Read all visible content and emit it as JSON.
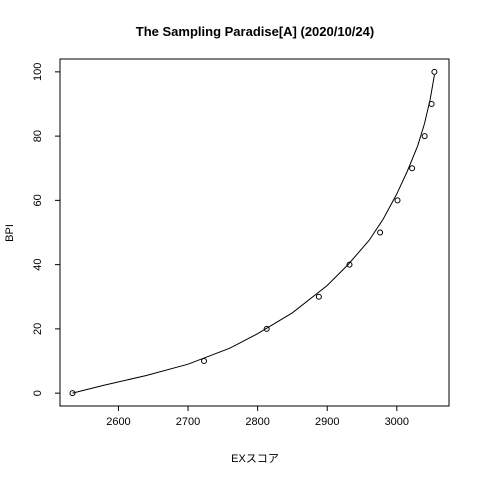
{
  "chart_data": {
    "type": "scatter",
    "title": "The Sampling Paradise[A] (2020/10/24)",
    "xlabel": "EXスコア",
    "ylabel": "BPI",
    "xlim": [
      2516,
      3075
    ],
    "ylim": [
      -4,
      104
    ],
    "x_ticks": [
      2600,
      2700,
      2800,
      2900,
      3000
    ],
    "y_ticks": [
      0,
      20,
      40,
      60,
      80,
      100
    ],
    "grid": false,
    "legend": "none",
    "series": [
      {
        "type": "scatter",
        "marker": "open-circle",
        "points": [
          {
            "x": 2534,
            "y": 0
          },
          {
            "x": 2723,
            "y": 10
          },
          {
            "x": 2813,
            "y": 20
          },
          {
            "x": 2888,
            "y": 30
          },
          {
            "x": 2932,
            "y": 40
          },
          {
            "x": 2976,
            "y": 50
          },
          {
            "x": 3001,
            "y": 60
          },
          {
            "x": 3022,
            "y": 70
          },
          {
            "x": 3040,
            "y": 80
          },
          {
            "x": 3050,
            "y": 90
          },
          {
            "x": 3054,
            "y": 100
          }
        ]
      },
      {
        "type": "line",
        "points": [
          {
            "x": 2534,
            "y": 0
          },
          {
            "x": 2580,
            "y": 2.5
          },
          {
            "x": 2640,
            "y": 5.5
          },
          {
            "x": 2700,
            "y": 9
          },
          {
            "x": 2760,
            "y": 14
          },
          {
            "x": 2800,
            "y": 18.5
          },
          {
            "x": 2850,
            "y": 25
          },
          {
            "x": 2900,
            "y": 33.5
          },
          {
            "x": 2930,
            "y": 40
          },
          {
            "x": 2960,
            "y": 47.5
          },
          {
            "x": 2980,
            "y": 54
          },
          {
            "x": 3000,
            "y": 62
          },
          {
            "x": 3015,
            "y": 69
          },
          {
            "x": 3030,
            "y": 77
          },
          {
            "x": 3040,
            "y": 84
          },
          {
            "x": 3048,
            "y": 91.5
          },
          {
            "x": 3054,
            "y": 99
          }
        ]
      }
    ]
  }
}
